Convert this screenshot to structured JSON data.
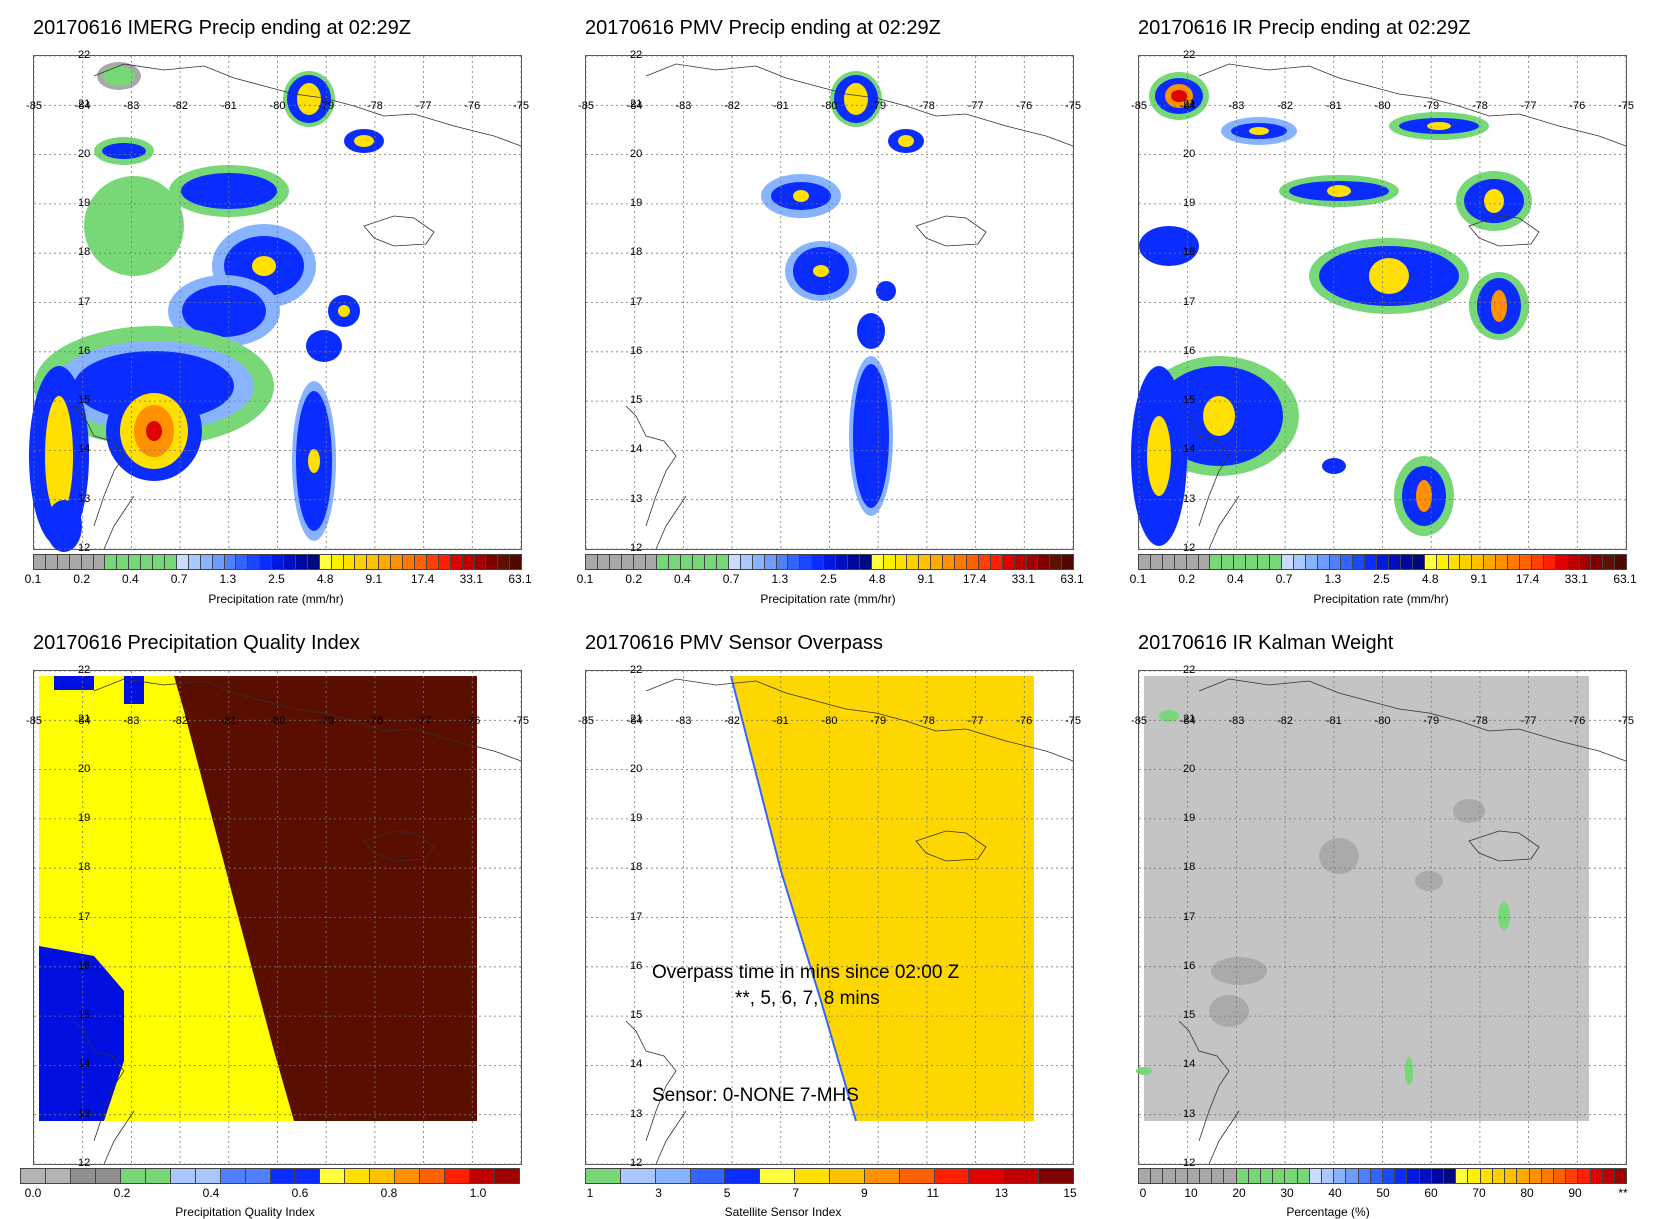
{
  "lon_ticks": [
    "-85",
    "-84",
    "-83",
    "-82",
    "-81",
    "-80",
    "-79",
    "-78",
    "-77",
    "-76",
    "-75"
  ],
  "lat_ticks": [
    "22",
    "21",
    "20",
    "19",
    "18",
    "17",
    "16",
    "15",
    "14",
    "13",
    "12"
  ],
  "precip_scale": {
    "ticks": [
      "0.1",
      "0.2",
      "0.4",
      "0.7",
      "1.3",
      "2.5",
      "4.8",
      "9.1",
      "17.4",
      "33.1",
      "63.1"
    ],
    "label": "Precipitation rate (mm/hr)",
    "colors": [
      "#a8a8a8",
      "#a8a8a8",
      "#a8a8a8",
      "#a8a8a8",
      "#a8a8a8",
      "#a8a8a8",
      "#78d878",
      "#78d878",
      "#78d878",
      "#78d878",
      "#78d878",
      "#78d878",
      "#c8dcff",
      "#a8c8ff",
      "#88b4ff",
      "#6c9cff",
      "#5080ff",
      "#3464ff",
      "#1a48ff",
      "#0a2cff",
      "#0018e0",
      "#0010c0",
      "#0008a0",
      "#000880",
      "#ffff40",
      "#fff000",
      "#ffe000",
      "#ffd000",
      "#ffc000",
      "#ffa800",
      "#ff9000",
      "#ff7800",
      "#ff6000",
      "#ff4000",
      "#ff2000",
      "#e00000",
      "#c00000",
      "#a00000",
      "#800000",
      "#601000",
      "#500800"
    ]
  },
  "panels": [
    {
      "id": "imerg",
      "title": "20170616 IMERG Precip ending at 02:29Z"
    },
    {
      "id": "pmv",
      "title": "20170616 PMV Precip ending at 02:29Z"
    },
    {
      "id": "ir",
      "title": "20170616 IR Precip ending at 02:29Z"
    },
    {
      "id": "pqi",
      "title": "20170616 Precipitation Quality Index"
    },
    {
      "id": "overpass",
      "title": "20170616 PMV Sensor Overpass"
    },
    {
      "id": "kalman",
      "title": "20170616 IR Kalman Weight"
    }
  ],
  "pqi_scale": {
    "ticks": [
      "0.0",
      "0.2",
      "0.4",
      "0.6",
      "0.8",
      "1.0"
    ],
    "label": "Precipitation Quality Index",
    "colors": [
      "#b4b4b4",
      "#b4b4b4",
      "#909090",
      "#909090",
      "#78d878",
      "#78d878",
      "#a8c8ff",
      "#a8c8ff",
      "#5080ff",
      "#5080ff",
      "#0a2cff",
      "#0a2cff",
      "#ffff40",
      "#ffe000",
      "#ffc000",
      "#ff9000",
      "#ff6000",
      "#ff2000",
      "#c00000",
      "#a00000"
    ]
  },
  "sensor_scale": {
    "ticks": [
      "1",
      "3",
      "5",
      "7",
      "9",
      "11",
      "13",
      "15"
    ],
    "label": "Satellite Sensor Index",
    "colors": [
      "#78d878",
      "#a8c8ff",
      "#88b4ff",
      "#3464ff",
      "#0a2cff",
      "#ffff40",
      "#ffe000",
      "#ffc000",
      "#ff9000",
      "#ff6000",
      "#ff2000",
      "#e00000",
      "#c00000",
      "#800000"
    ]
  },
  "kalman_scale": {
    "ticks": [
      "0",
      "10",
      "20",
      "30",
      "40",
      "50",
      "60",
      "70",
      "80",
      "90",
      "**"
    ],
    "label": "Percentage (%)",
    "colors": [
      "#a8a8a8",
      "#a8a8a8",
      "#a8a8a8",
      "#a8a8a8",
      "#a8a8a8",
      "#a8a8a8",
      "#a8a8a8",
      "#a8a8a8",
      "#78d878",
      "#78d878",
      "#78d878",
      "#78d878",
      "#78d878",
      "#78d878",
      "#c8dcff",
      "#a8c8ff",
      "#88b4ff",
      "#6c9cff",
      "#5080ff",
      "#3464ff",
      "#1a48ff",
      "#0a2cff",
      "#0018e0",
      "#0010c0",
      "#0008a0",
      "#000880",
      "#ffff40",
      "#fff000",
      "#ffe000",
      "#ffd000",
      "#ffc000",
      "#ffa800",
      "#ff9000",
      "#ff7800",
      "#ff6000",
      "#ff4000",
      "#ff2000",
      "#e00000",
      "#c00000",
      "#a00000"
    ]
  },
  "overpass_note": {
    "line1": "Overpass time in mins since 02:00 Z",
    "line2": "**, 5, 6, 7, 8 mins",
    "line3": "Sensor:   0-NONE  7-MHS"
  }
}
